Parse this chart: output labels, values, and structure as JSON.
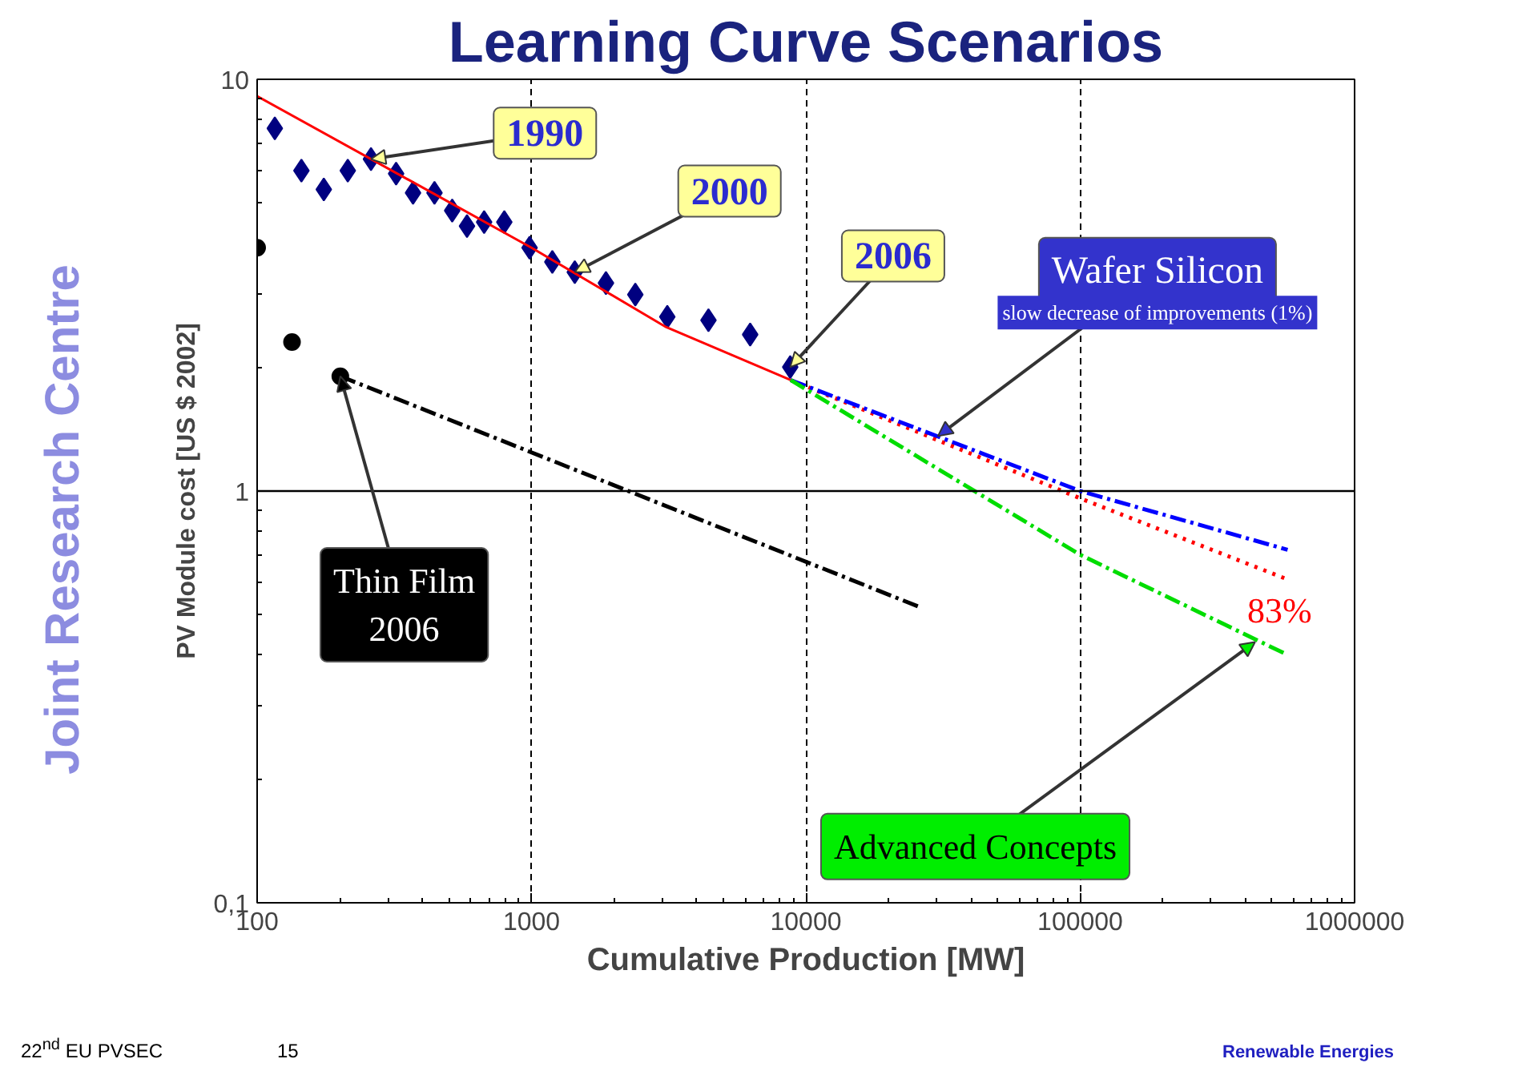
{
  "chart_data": {
    "type": "scatter",
    "title": "Learning Curve Scenarios",
    "xlabel": "Cumulative Production [MW]",
    "ylabel": "PV Module cost [US $ 2002]",
    "log": "xy",
    "grid": "x",
    "xlim": [
      100,
      1000000
    ],
    "ylim": [
      0.1,
      10
    ],
    "xticks": [
      100,
      1000,
      10000,
      100000,
      1000000
    ],
    "yticks": [
      {
        "value": 0.1,
        "label": "0,1"
      },
      1,
      10
    ],
    "ref_lines": [
      {
        "axis": "y",
        "value": 1,
        "color": "#000000",
        "line_style": "solid"
      }
    ],
    "series": [
      {
        "type": "scatter",
        "marker": "diamond",
        "color": "#000080",
        "x": [
          116,
          145,
          175,
          214,
          260,
          321,
          370,
          443,
          514,
          582,
          672,
          796,
          984,
          1191,
          1438,
          1868,
          2390,
          3126,
          4416,
          6266,
          8770
        ],
        "values": [
          7.6,
          6.0,
          5.4,
          6.0,
          6.4,
          5.9,
          5.3,
          5.3,
          4.8,
          4.4,
          4.5,
          4.5,
          3.9,
          3.6,
          3.4,
          3.2,
          3.0,
          2.65,
          2.6,
          2.4,
          2.0
        ]
      },
      {
        "type": "scatter",
        "marker": "circle",
        "color": "#000000",
        "x": [
          100,
          134,
          201
        ],
        "values": [
          3.9,
          2.3,
          1.9
        ]
      },
      {
        "type": "line",
        "marker": "none",
        "line_style": "solid",
        "color": "#ff0000",
        "x": [
          100,
          1000,
          3100,
          8800
        ],
        "values": [
          9.1,
          3.9,
          2.5,
          1.86
        ]
      },
      {
        "type": "line",
        "marker": "none",
        "line_style": "dotted",
        "color": "#ff0000",
        "x": [
          8800,
          100000,
          570000
        ],
        "values": [
          1.86,
          0.96,
          0.61
        ]
      },
      {
        "type": "line",
        "marker": "none",
        "line_style": "dashdot",
        "color": "#0000ff",
        "x": [
          8800,
          100000,
          570000
        ],
        "values": [
          1.86,
          1.0,
          0.72
        ]
      },
      {
        "type": "line",
        "marker": "none",
        "line_style": "dashdot",
        "color": "#00dd00",
        "x": [
          8800,
          100000,
          570000
        ],
        "values": [
          1.86,
          0.7,
          0.4
        ]
      },
      {
        "type": "line",
        "marker": "none",
        "line_style": "dashdot",
        "color": "#000000",
        "x": [
          201,
          26500
        ],
        "values": [
          1.9,
          0.52
        ]
      }
    ],
    "annotations": [
      {
        "text": "1990",
        "x": 260,
        "y": 6.4
      },
      {
        "text": "2000",
        "x": 1438,
        "y": 3.4
      },
      {
        "text": "2006",
        "x": 8770,
        "y": 2.0
      },
      {
        "text": "Wafer Silicon",
        "x": 30300,
        "y": 1.36
      },
      "slow decrease of improvements (1%)",
      {
        "text": "Thin Film\n2006",
        "x": 201,
        "y": 1.9
      },
      {
        "text": "Advanced Concepts",
        "x": 434000,
        "y": 0.43
      },
      "83%",
      "Joint Research Centre",
      "22$^{nd}$ EU PVSEC",
      "15",
      "Renewable Energies"
    ]
  }
}
